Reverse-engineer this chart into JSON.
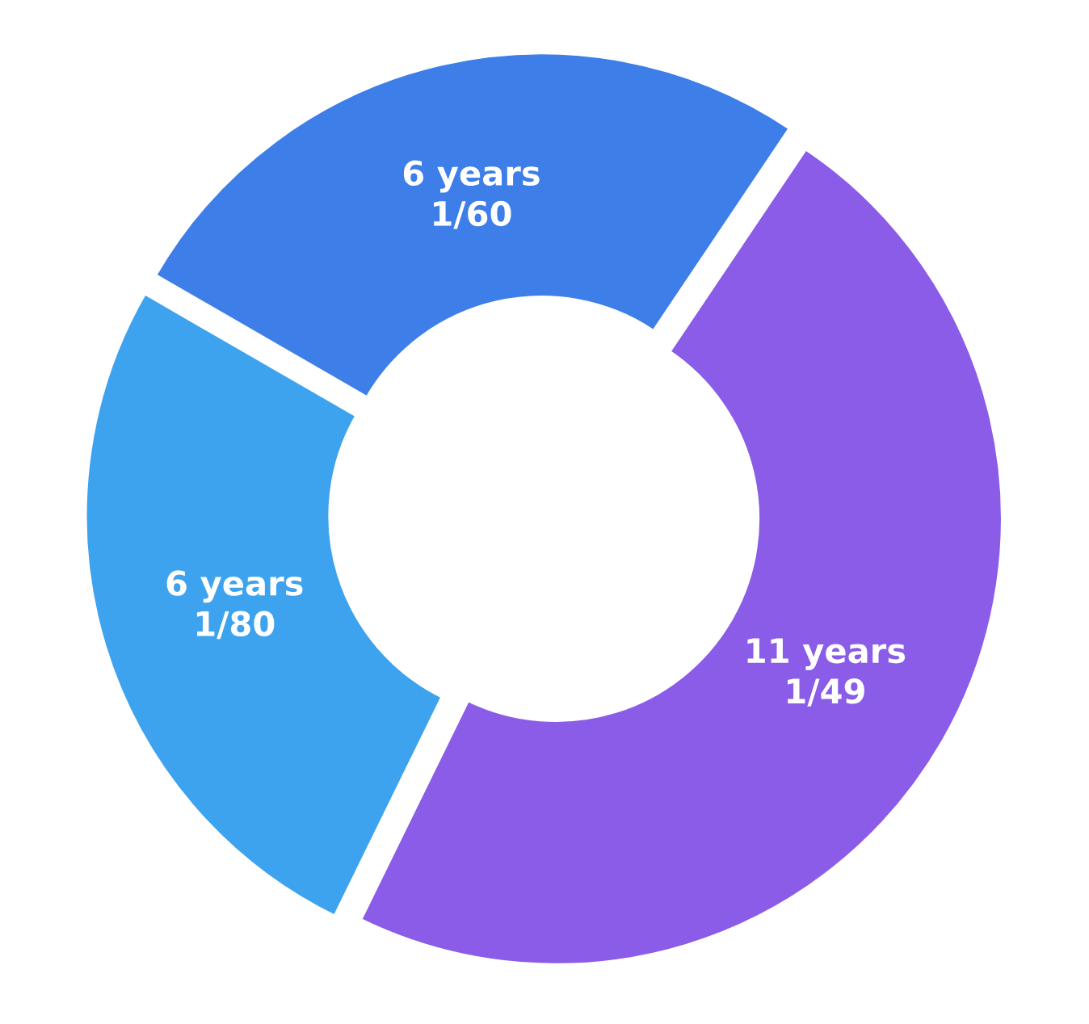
{
  "chart_data": {
    "type": "donut",
    "categories": [
      "1/60",
      "1/49",
      "1/80"
    ],
    "values": [
      6,
      11,
      6
    ],
    "value_labels": [
      "6 years",
      "11 years",
      "6 years"
    ],
    "colors": [
      "#3d7ee8",
      "#8a5ce8",
      "#3ea3ee"
    ]
  }
}
